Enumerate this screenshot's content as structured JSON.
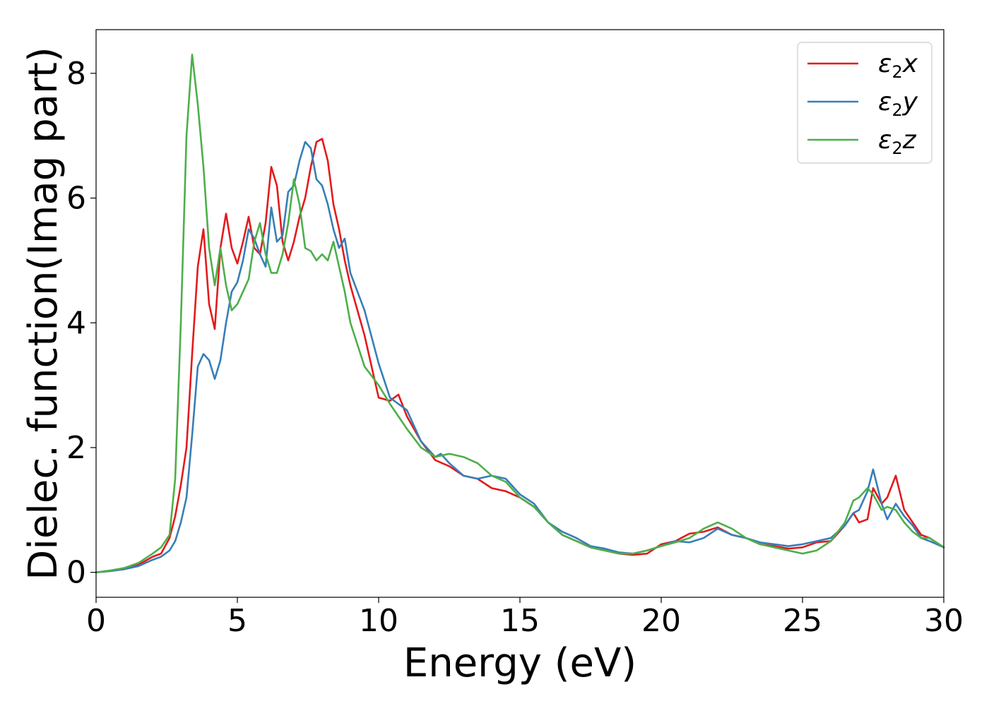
{
  "chart_data": {
    "type": "line",
    "xlabel": "Energy (eV)",
    "ylabel": "Dielec. function(Imag part)",
    "xlim": [
      0,
      30
    ],
    "ylim": [
      -0.4,
      8.7
    ],
    "xticks": [
      0,
      5,
      10,
      15,
      20,
      25,
      30
    ],
    "yticks": [
      0,
      2,
      4,
      6,
      8
    ],
    "grid": false,
    "legend_position": "top-right",
    "series": [
      {
        "name": "ε2x",
        "label_base": "ε",
        "label_sub": "2",
        "label_suffix": "x",
        "color": "#e41a1c",
        "x": [
          0,
          0.5,
          1.0,
          1.5,
          2.0,
          2.3,
          2.6,
          2.8,
          3.0,
          3.2,
          3.4,
          3.6,
          3.8,
          4.0,
          4.2,
          4.4,
          4.6,
          4.8,
          5.0,
          5.2,
          5.4,
          5.6,
          5.8,
          6.0,
          6.2,
          6.4,
          6.6,
          6.8,
          7.0,
          7.2,
          7.4,
          7.6,
          7.8,
          8.0,
          8.2,
          8.4,
          8.6,
          8.8,
          9.0,
          9.5,
          10.0,
          10.4,
          10.7,
          11.0,
          11.5,
          12.0,
          12.5,
          13.0,
          13.5,
          14.0,
          14.5,
          15.0,
          15.5,
          16.0,
          16.5,
          17.0,
          17.5,
          18.0,
          18.5,
          19.0,
          19.5,
          20.0,
          20.5,
          21.0,
          21.5,
          22.0,
          22.5,
          23.0,
          23.5,
          24.0,
          24.5,
          25.0,
          25.5,
          26.0,
          26.5,
          26.8,
          27.0,
          27.3,
          27.5,
          27.8,
          28.0,
          28.3,
          28.6,
          28.9,
          29.2,
          29.5,
          30.0
        ],
        "y": [
          0,
          0.02,
          0.05,
          0.12,
          0.25,
          0.3,
          0.55,
          0.9,
          1.4,
          2.0,
          3.5,
          4.9,
          5.5,
          4.3,
          3.9,
          5.2,
          5.75,
          5.2,
          4.95,
          5.3,
          5.7,
          5.2,
          5.1,
          5.6,
          6.5,
          6.2,
          5.3,
          5.0,
          5.3,
          5.7,
          6.0,
          6.5,
          6.9,
          6.95,
          6.6,
          5.9,
          5.5,
          5.0,
          4.6,
          3.8,
          2.8,
          2.75,
          2.85,
          2.5,
          2.1,
          1.8,
          1.7,
          1.55,
          1.5,
          1.35,
          1.3,
          1.2,
          1.05,
          0.8,
          0.6,
          0.5,
          0.4,
          0.35,
          0.3,
          0.28,
          0.3,
          0.45,
          0.5,
          0.62,
          0.65,
          0.72,
          0.6,
          0.55,
          0.45,
          0.42,
          0.38,
          0.4,
          0.48,
          0.5,
          0.75,
          0.95,
          0.8,
          0.85,
          1.35,
          1.1,
          1.2,
          1.55,
          1.0,
          0.8,
          0.6,
          0.55,
          0.4
        ]
      },
      {
        "name": "ε2y",
        "label_base": "ε",
        "label_sub": "2",
        "label_suffix": "y",
        "color": "#377eb8",
        "x": [
          0,
          0.5,
          1.0,
          1.5,
          2.0,
          2.3,
          2.6,
          2.8,
          3.0,
          3.2,
          3.4,
          3.6,
          3.8,
          4.0,
          4.2,
          4.4,
          4.6,
          4.8,
          5.0,
          5.2,
          5.4,
          5.6,
          5.8,
          6.0,
          6.2,
          6.4,
          6.6,
          6.8,
          7.0,
          7.2,
          7.4,
          7.6,
          7.8,
          8.0,
          8.2,
          8.4,
          8.6,
          8.8,
          9.0,
          9.5,
          10.0,
          10.4,
          10.7,
          11.0,
          11.5,
          12.0,
          12.2,
          12.5,
          13.0,
          13.5,
          14.0,
          14.5,
          15.0,
          15.5,
          16.0,
          16.5,
          17.0,
          17.5,
          18.0,
          18.5,
          19.0,
          19.5,
          20.0,
          20.5,
          21.0,
          21.5,
          22.0,
          22.5,
          23.0,
          23.5,
          24.0,
          24.5,
          25.0,
          25.5,
          26.0,
          26.5,
          26.8,
          27.0,
          27.3,
          27.5,
          27.8,
          28.0,
          28.3,
          28.6,
          28.9,
          29.2,
          29.5,
          30.0
        ],
        "y": [
          0,
          0.02,
          0.05,
          0.1,
          0.2,
          0.25,
          0.35,
          0.5,
          0.8,
          1.2,
          2.2,
          3.3,
          3.5,
          3.4,
          3.1,
          3.4,
          4.0,
          4.5,
          4.65,
          5.0,
          5.5,
          5.35,
          5.1,
          4.9,
          5.85,
          5.3,
          5.4,
          6.1,
          6.2,
          6.6,
          6.9,
          6.8,
          6.3,
          6.2,
          5.9,
          5.5,
          5.2,
          5.35,
          4.8,
          4.2,
          3.35,
          2.8,
          2.7,
          2.6,
          2.1,
          1.85,
          1.9,
          1.75,
          1.55,
          1.5,
          1.55,
          1.5,
          1.25,
          1.1,
          0.8,
          0.65,
          0.55,
          0.42,
          0.38,
          0.32,
          0.3,
          0.35,
          0.42,
          0.5,
          0.48,
          0.55,
          0.7,
          0.6,
          0.55,
          0.48,
          0.45,
          0.42,
          0.45,
          0.5,
          0.55,
          0.75,
          0.95,
          1.0,
          1.3,
          1.65,
          1.1,
          0.85,
          1.1,
          0.9,
          0.75,
          0.55,
          0.5,
          0.4
        ]
      },
      {
        "name": "ε2z",
        "label_base": "ε",
        "label_sub": "2",
        "label_suffix": "z",
        "color": "#4daf4a",
        "x": [
          0,
          0.5,
          1.0,
          1.5,
          2.0,
          2.3,
          2.6,
          2.8,
          3.0,
          3.2,
          3.4,
          3.6,
          3.8,
          4.0,
          4.2,
          4.4,
          4.6,
          4.8,
          5.0,
          5.2,
          5.4,
          5.6,
          5.8,
          6.0,
          6.2,
          6.4,
          6.6,
          6.8,
          7.0,
          7.2,
          7.4,
          7.6,
          7.8,
          8.0,
          8.2,
          8.4,
          8.6,
          8.8,
          9.0,
          9.5,
          10.0,
          10.4,
          10.7,
          11.0,
          11.5,
          12.0,
          12.5,
          13.0,
          13.5,
          14.0,
          14.5,
          15.0,
          15.5,
          16.0,
          16.5,
          17.0,
          17.5,
          18.0,
          18.5,
          19.0,
          19.5,
          20.0,
          20.5,
          21.0,
          21.5,
          22.0,
          22.5,
          23.0,
          23.5,
          24.0,
          24.5,
          25.0,
          25.5,
          26.0,
          26.5,
          26.8,
          27.0,
          27.3,
          27.5,
          27.8,
          28.0,
          28.3,
          28.6,
          28.9,
          29.2,
          29.5,
          30.0
        ],
        "y": [
          0,
          0.03,
          0.07,
          0.15,
          0.3,
          0.4,
          0.6,
          1.5,
          4.0,
          7.0,
          8.3,
          7.5,
          6.5,
          5.2,
          4.6,
          5.2,
          4.6,
          4.2,
          4.3,
          4.5,
          4.7,
          5.3,
          5.6,
          5.1,
          4.8,
          4.8,
          5.1,
          5.6,
          6.3,
          5.9,
          5.2,
          5.15,
          5.0,
          5.1,
          5.0,
          5.3,
          4.9,
          4.5,
          4.0,
          3.3,
          3.0,
          2.7,
          2.5,
          2.3,
          2.0,
          1.85,
          1.9,
          1.85,
          1.75,
          1.55,
          1.45,
          1.2,
          1.05,
          0.8,
          0.6,
          0.5,
          0.4,
          0.35,
          0.3,
          0.3,
          0.35,
          0.42,
          0.48,
          0.55,
          0.7,
          0.8,
          0.7,
          0.55,
          0.45,
          0.4,
          0.35,
          0.3,
          0.35,
          0.5,
          0.8,
          1.15,
          1.2,
          1.35,
          1.25,
          1.0,
          1.05,
          1.0,
          0.8,
          0.65,
          0.55,
          0.55,
          0.4
        ]
      }
    ]
  }
}
